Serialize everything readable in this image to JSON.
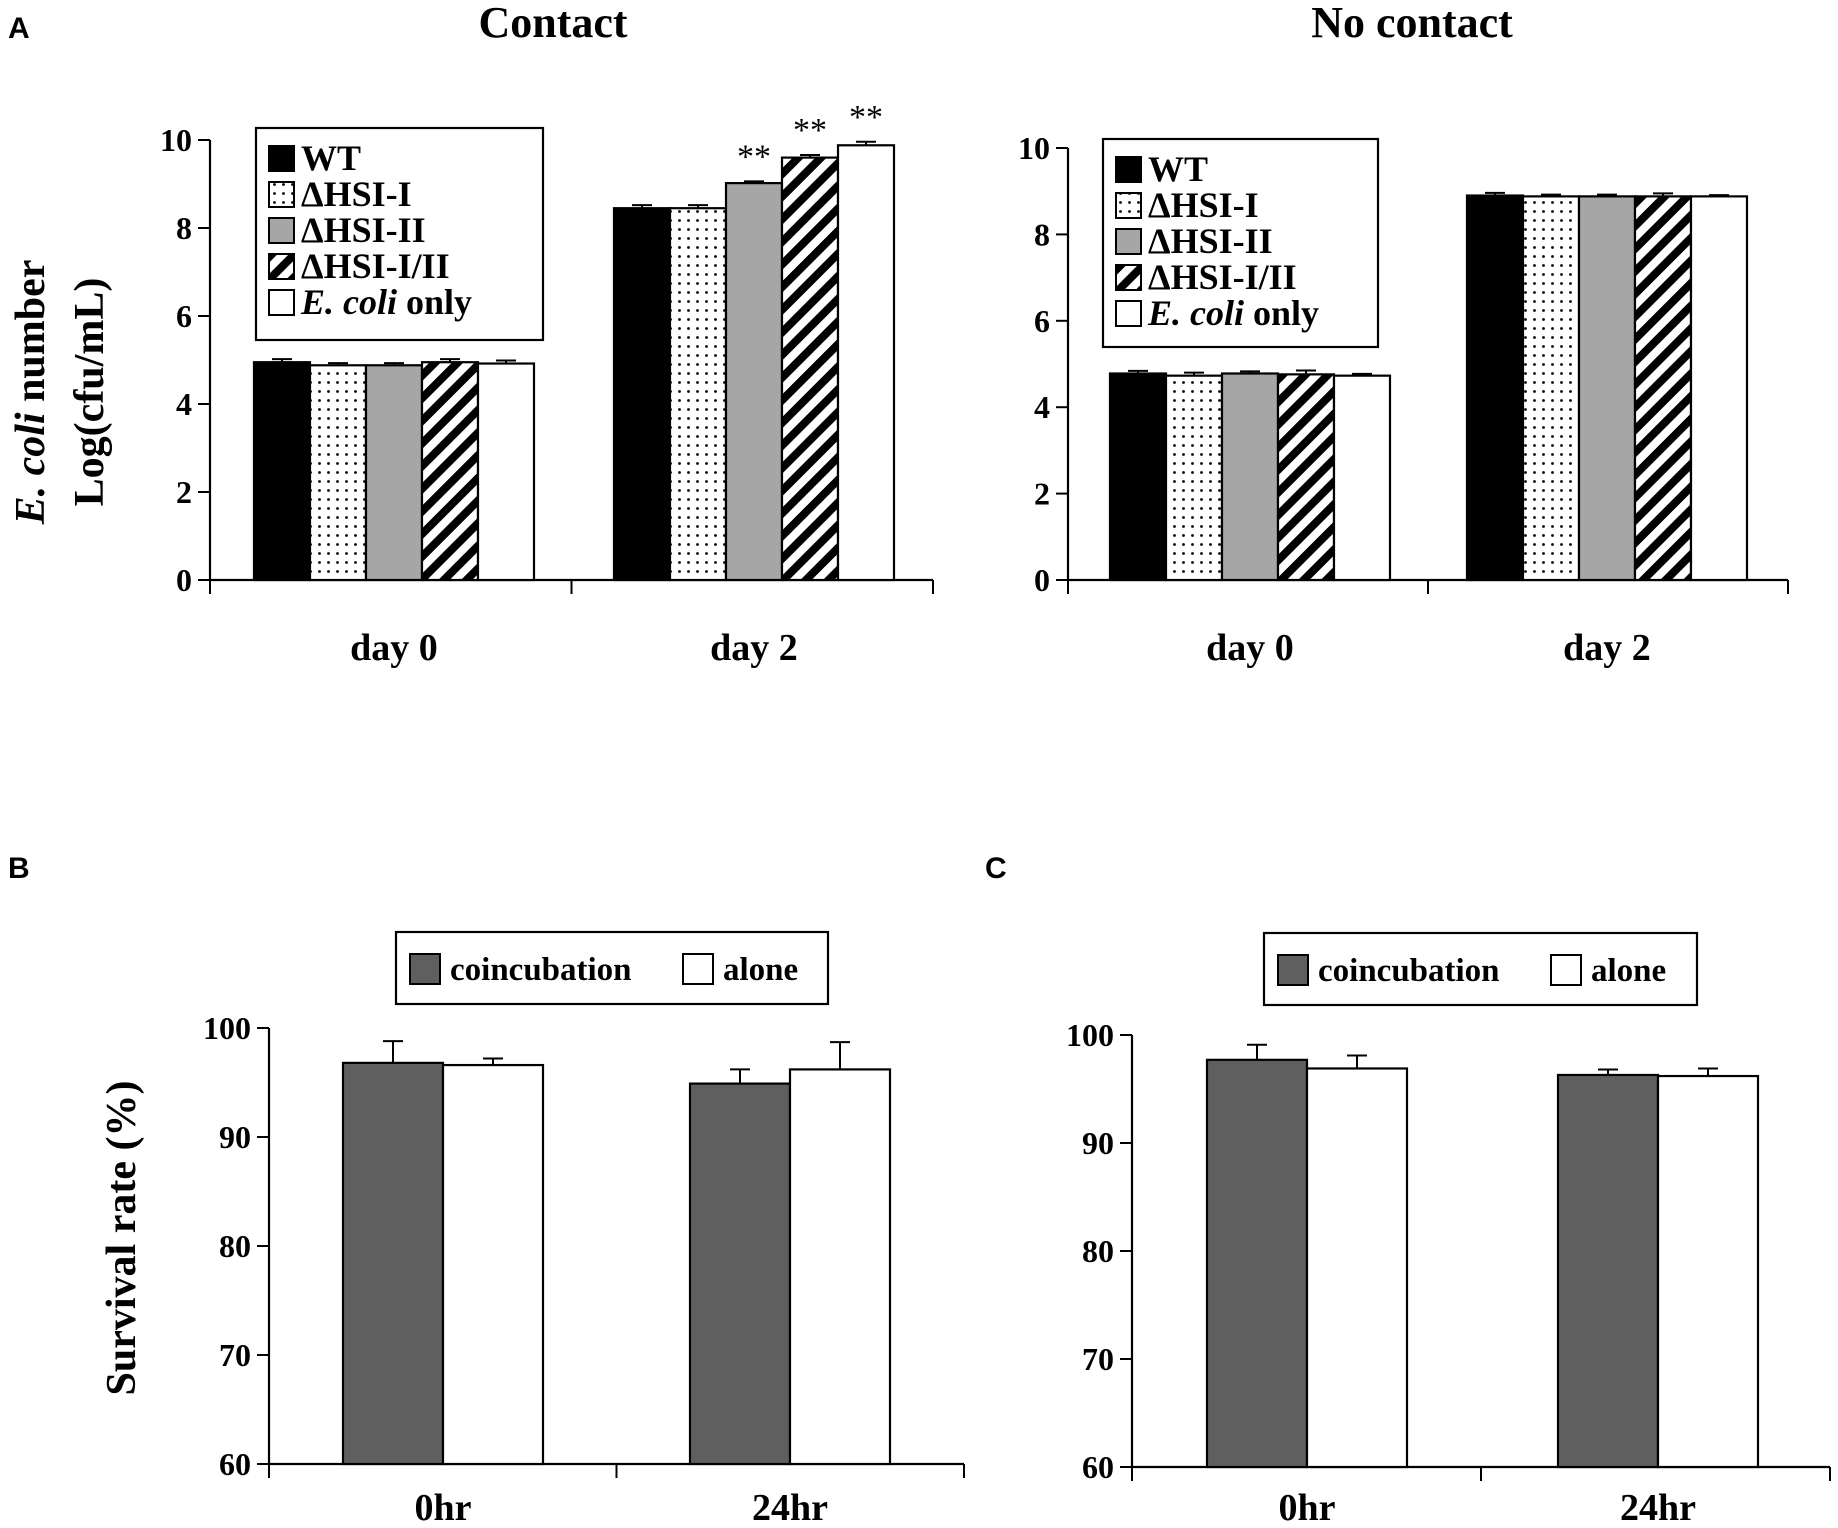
{
  "panel_labels": {
    "a": "A",
    "b": "B",
    "c": "C"
  },
  "colors": {
    "wt": "#000000",
    "dhsi1": "#ffffff",
    "dhsi2": "#a6a6a6",
    "dhsi12": "#ffffff",
    "ecoli": "#ffffff",
    "coincubation": "#5f5f5f",
    "alone": "#ffffff"
  },
  "chart_data": [
    {
      "id": "A-contact",
      "type": "bar",
      "title": "Contact",
      "ylabel_italic": "E. coli",
      "ylabel_rest": " number",
      "ylabel_line2": "Log(cfu/mL)",
      "ylim": [
        0,
        10
      ],
      "yticks": [
        "0",
        "2",
        "4",
        "6",
        "8",
        "10"
      ],
      "categories": [
        "day 0",
        "day 2"
      ],
      "legend": [
        {
          "label": "WT",
          "italic": "",
          "pattern": "solid-black"
        },
        {
          "label": "ΔHSI-I",
          "italic": "",
          "pattern": "dots"
        },
        {
          "label": "ΔHSI-II",
          "italic": "",
          "pattern": "gray"
        },
        {
          "label": "ΔHSI-I/II",
          "italic": "",
          "pattern": "diag"
        },
        {
          "label": " only",
          "italic": "E. coli",
          "pattern": "white"
        }
      ],
      "series": [
        {
          "name": "WT",
          "values": [
            4.95,
            8.45
          ],
          "errors": [
            0.07,
            0.07
          ]
        },
        {
          "name": "ΔHSI-I",
          "values": [
            4.88,
            8.45
          ],
          "errors": [
            0.05,
            0.07
          ]
        },
        {
          "name": "ΔHSI-II",
          "values": [
            4.88,
            9.02
          ],
          "errors": [
            0.05,
            0.04
          ]
        },
        {
          "name": "ΔHSI-I/II",
          "values": [
            4.95,
            9.6
          ],
          "errors": [
            0.07,
            0.06
          ]
        },
        {
          "name": "E. coli only",
          "values": [
            4.92,
            9.88
          ],
          "errors": [
            0.07,
            0.08
          ]
        }
      ],
      "annotations": [
        {
          "text": "**",
          "category": 1,
          "series": 2
        },
        {
          "text": "**",
          "category": 1,
          "series": 3
        },
        {
          "text": "**",
          "category": 1,
          "series": 4
        }
      ]
    },
    {
      "id": "A-nocontact",
      "type": "bar",
      "title": "No contact",
      "ylim": [
        0,
        10
      ],
      "yticks": [
        "0",
        "2",
        "4",
        "6",
        "8",
        "10"
      ],
      "categories": [
        "day 0",
        "day 2"
      ],
      "legend": [
        {
          "label": "WT",
          "italic": "",
          "pattern": "solid-black"
        },
        {
          "label": "ΔHSI-I",
          "italic": "",
          "pattern": "dots"
        },
        {
          "label": "ΔHSI-II",
          "italic": "",
          "pattern": "gray"
        },
        {
          "label": "ΔHSI-I/II",
          "italic": "",
          "pattern": "diag"
        },
        {
          "label": " only",
          "italic": "E. coli",
          "pattern": "white"
        }
      ],
      "series": [
        {
          "name": "WT",
          "values": [
            4.78,
            8.9
          ],
          "errors": [
            0.06,
            0.06
          ]
        },
        {
          "name": "ΔHSI-I",
          "values": [
            4.73,
            8.88
          ],
          "errors": [
            0.07,
            0.04
          ]
        },
        {
          "name": "ΔHSI-II",
          "values": [
            4.78,
            8.88
          ],
          "errors": [
            0.05,
            0.04
          ]
        },
        {
          "name": "ΔHSI-I/II",
          "values": [
            4.76,
            8.88
          ],
          "errors": [
            0.09,
            0.07
          ]
        },
        {
          "name": "E. coli only",
          "values": [
            4.73,
            8.88
          ],
          "errors": [
            0.04,
            0.03
          ]
        }
      ],
      "annotations": []
    },
    {
      "id": "B",
      "type": "bar",
      "title": "",
      "ylabel": "Survival rate (%)",
      "ylim": [
        60,
        100
      ],
      "yticks": [
        "60",
        "70",
        "80",
        "90",
        "100"
      ],
      "categories": [
        "0hr",
        "24hr"
      ],
      "legend": [
        {
          "label": "coincubation",
          "pattern": "dark"
        },
        {
          "label": "alone",
          "pattern": "white"
        }
      ],
      "series": [
        {
          "name": "coincubation",
          "values": [
            96.8,
            94.9
          ],
          "errors": [
            2.0,
            1.3
          ]
        },
        {
          "name": "alone",
          "values": [
            96.6,
            96.2
          ],
          "errors": [
            0.6,
            2.5
          ]
        }
      ]
    },
    {
      "id": "C",
      "type": "bar",
      "title": "",
      "ylim": [
        60,
        100
      ],
      "yticks": [
        "60",
        "70",
        "80",
        "90",
        "100"
      ],
      "categories": [
        "0hr",
        "24hr"
      ],
      "legend": [
        {
          "label": "coincubation",
          "pattern": "dark"
        },
        {
          "label": "alone",
          "pattern": "white"
        }
      ],
      "series": [
        {
          "name": "coincubation",
          "values": [
            97.7,
            96.3
          ],
          "errors": [
            1.4,
            0.5
          ]
        },
        {
          "name": "alone",
          "values": [
            96.9,
            96.2
          ],
          "errors": [
            1.2,
            0.7
          ]
        }
      ]
    }
  ]
}
